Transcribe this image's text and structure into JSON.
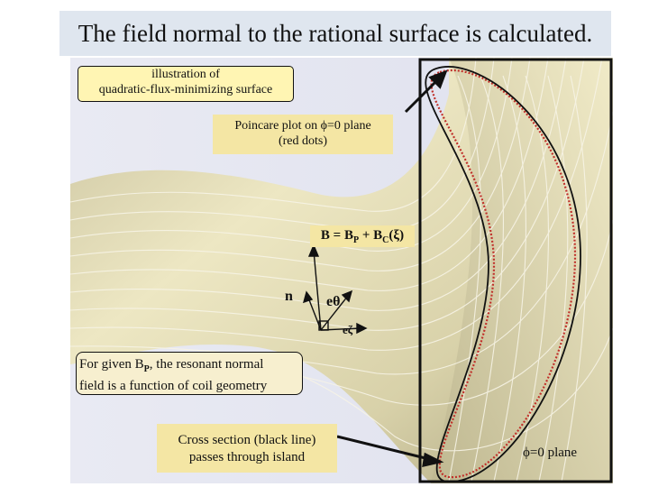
{
  "title": "The field normal to the rational surface is calculated.",
  "labels": {
    "illustration_line1": "illustration of",
    "illustration_line2": "quadratic-flux-minimizing surface",
    "poincare_line1_a": "Poincare plot on ",
    "poincare_phi": "ϕ",
    "poincare_line1_b": "=0 plane",
    "poincare_line2": "(red dots)",
    "equation_left": "B = B",
    "equation_sub_p": "P",
    "equation_plus": " + B",
    "equation_sub_c": "C",
    "equation_xi": "(ξ)",
    "normal": "n",
    "e_theta": "eθ",
    "e_zeta": "eζ",
    "for_given_a": "For given B",
    "for_given_sub": "P",
    "for_given_b": ", the resonant normal",
    "for_given_line2": "field is a function of coil geometry",
    "cross_line1": "Cross section (black line)",
    "cross_line2": "passes through island",
    "phi_plane": "ϕ=0 plane"
  },
  "colors": {
    "title_bg": "#dfe6ef",
    "surface": "#e2dcb4",
    "surface_shadow": "#b7b08a",
    "poincare_dots": "#c0302a",
    "cross_section": "#111111",
    "box_yellow": "#fff5b3",
    "box_tan": "#f4e6a4"
  }
}
